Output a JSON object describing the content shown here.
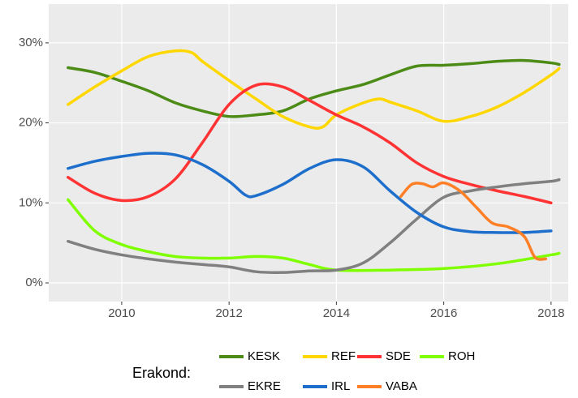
{
  "chart_data": {
    "type": "line",
    "legend_title": "Erakond:",
    "legend": "bottom",
    "grid": true,
    "xlim": [
      2008.64,
      2018.32
    ],
    "ylim": [
      -2.33,
      34.85
    ],
    "xticks": [
      2010,
      2012,
      2014,
      2016,
      2018
    ],
    "yticks": [
      {
        "value": 0,
        "label": "0%"
      },
      {
        "value": 10,
        "label": "10%"
      },
      {
        "value": 20,
        "label": "20%"
      },
      {
        "value": 30,
        "label": "30%"
      }
    ],
    "series": [
      {
        "name": "KESK",
        "color": "#4b8b16",
        "x": [
          2009,
          2009.5,
          2010,
          2010.5,
          2011,
          2011.5,
          2012,
          2012.5,
          2013,
          2013.5,
          2014,
          2014.5,
          2015,
          2015.5,
          2016,
          2016.5,
          2017,
          2017.5,
          2018,
          2018.15
        ],
        "values": [
          26.9,
          26.3,
          25.2,
          24.0,
          22.5,
          21.5,
          20.8,
          21.0,
          21.5,
          23.0,
          24.0,
          24.8,
          26.0,
          27.1,
          27.2,
          27.4,
          27.7,
          27.8,
          27.5,
          27.3
        ]
      },
      {
        "name": "REF",
        "color": "#ffd700",
        "x": [
          2009,
          2009.5,
          2010,
          2010.5,
          2011,
          2011.3,
          2011.5,
          2012,
          2012.5,
          2013,
          2013.5,
          2013.75,
          2014,
          2014.5,
          2014.8,
          2015,
          2015.5,
          2016,
          2016.5,
          2017,
          2017.5,
          2018,
          2018.15
        ],
        "values": [
          22.3,
          24.5,
          26.5,
          28.3,
          29.0,
          28.8,
          27.7,
          25.3,
          23.0,
          20.8,
          19.5,
          19.5,
          21.0,
          22.5,
          23.0,
          22.6,
          21.5,
          20.2,
          20.8,
          22.0,
          23.8,
          26.0,
          26.8
        ]
      },
      {
        "name": "SDE",
        "color": "#ff3333",
        "x": [
          2009,
          2009.5,
          2010,
          2010.5,
          2011,
          2011.5,
          2012,
          2012.5,
          2013,
          2013.5,
          2014,
          2014.5,
          2015,
          2015.5,
          2016,
          2016.5,
          2017,
          2017.5,
          2018
        ],
        "values": [
          13.2,
          11.2,
          10.3,
          10.8,
          13.0,
          17.5,
          22.3,
          24.7,
          24.5,
          22.8,
          21.0,
          19.5,
          17.5,
          15.0,
          13.3,
          12.3,
          11.5,
          10.8,
          10.0
        ]
      },
      {
        "name": "ROH",
        "color": "#80ff00",
        "x": [
          2009,
          2009.5,
          2010,
          2010.5,
          2011,
          2011.5,
          2012,
          2012.5,
          2013,
          2013.5,
          2014,
          2015,
          2016,
          2017,
          2018,
          2018.15
        ],
        "values": [
          10.4,
          6.5,
          4.8,
          3.9,
          3.3,
          3.1,
          3.1,
          3.3,
          3.1,
          2.3,
          1.6,
          1.6,
          1.8,
          2.4,
          3.5,
          3.7
        ]
      },
      {
        "name": "EKRE",
        "color": "#808080",
        "x": [
          2009,
          2009.5,
          2010,
          2010.5,
          2011,
          2011.5,
          2012,
          2012.5,
          2013,
          2013.5,
          2014,
          2014.5,
          2015,
          2015.5,
          2016,
          2016.5,
          2017,
          2017.5,
          2018,
          2018.15
        ],
        "values": [
          5.2,
          4.2,
          3.5,
          3.0,
          2.6,
          2.3,
          2.0,
          1.4,
          1.3,
          1.5,
          1.6,
          2.5,
          5.0,
          8.0,
          10.7,
          11.5,
          12.0,
          12.4,
          12.7,
          12.9
        ]
      },
      {
        "name": "IRL",
        "color": "#1e6fcc",
        "x": [
          2009,
          2009.5,
          2010,
          2010.5,
          2011,
          2011.5,
          2012,
          2012.3,
          2012.5,
          2013,
          2013.5,
          2014,
          2014.5,
          2015,
          2015.5,
          2016,
          2016.5,
          2017,
          2017.5,
          2018
        ],
        "values": [
          14.3,
          15.2,
          15.8,
          16.2,
          16.0,
          14.8,
          12.7,
          11.0,
          10.9,
          12.3,
          14.3,
          15.4,
          14.5,
          11.5,
          8.8,
          7.0,
          6.4,
          6.3,
          6.3,
          6.5
        ]
      },
      {
        "name": "VABA",
        "color": "#ff7f27",
        "x": [
          2015.2,
          2015.4,
          2015.6,
          2015.8,
          2016,
          2016.3,
          2016.6,
          2016.9,
          2017.2,
          2017.5,
          2017.7,
          2017.9
        ],
        "values": [
          10.8,
          12.3,
          12.4,
          12.0,
          12.5,
          11.5,
          9.5,
          7.5,
          7.0,
          5.8,
          3.2,
          3.0
        ]
      }
    ]
  }
}
